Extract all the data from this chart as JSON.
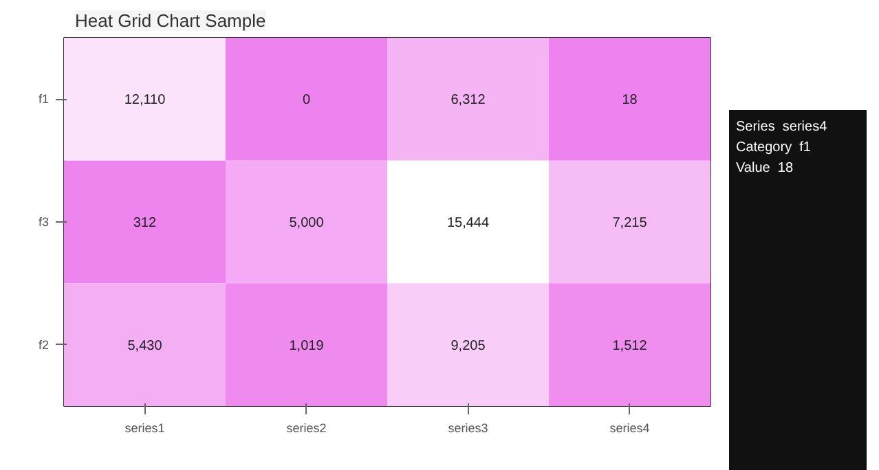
{
  "chart_data": {
    "type": "heatmap",
    "title": "Heat Grid Chart Sample",
    "categories": [
      "series1",
      "series2",
      "series3",
      "series4"
    ],
    "y_categories": [
      "f1",
      "f3",
      "f2"
    ],
    "cells": [
      [
        12110,
        0,
        6312,
        18
      ],
      [
        312,
        5000,
        15444,
        7215
      ],
      [
        5430,
        1019,
        9205,
        1512
      ]
    ],
    "cell_labels": [
      [
        "12,110",
        "0",
        "6,312",
        "18"
      ],
      [
        "312",
        "5,000",
        "15,444",
        "7,215"
      ],
      [
        "5,430",
        "1,019",
        "9,205",
        "1,512"
      ]
    ],
    "annotations": [
      "Series  series4",
      "Category  f1",
      "Value  18"
    ]
  }
}
